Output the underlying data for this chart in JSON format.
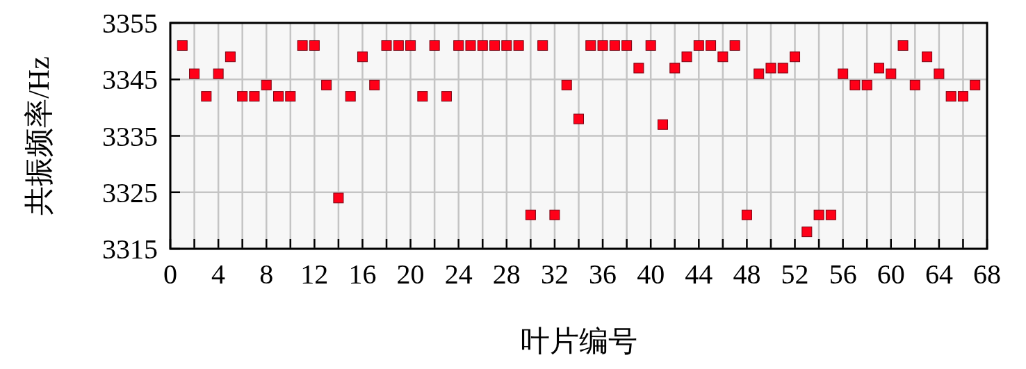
{
  "chart_data": {
    "type": "scatter",
    "xlabel": "叶片编号",
    "ylabel": "共振频率/Hz",
    "x": [
      1,
      2,
      3,
      4,
      5,
      6,
      7,
      8,
      9,
      10,
      11,
      12,
      13,
      14,
      15,
      16,
      17,
      18,
      19,
      20,
      21,
      22,
      23,
      24,
      25,
      26,
      27,
      28,
      29,
      30,
      31,
      32,
      33,
      34,
      35,
      36,
      37,
      38,
      39,
      40,
      41,
      42,
      43,
      44,
      45,
      46,
      47,
      48,
      49,
      50,
      51,
      52,
      53,
      54,
      55,
      56,
      57,
      58,
      59,
      60,
      61,
      62,
      63,
      64,
      65,
      66,
      67
    ],
    "series": [
      {
        "color": "#ff0018",
        "values": [
          3351,
          3346,
          3342,
          3346,
          3349,
          3342,
          3342,
          3344,
          3342,
          3342,
          3351,
          3351,
          3344,
          3324,
          3342,
          3349,
          3344,
          3351,
          3351,
          3351,
          3342,
          3351,
          3342,
          3351,
          3351,
          3351,
          3351,
          3351,
          3351,
          3321,
          3351,
          3321,
          3344,
          3338,
          3351,
          3351,
          3351,
          3351,
          3347,
          3351,
          3337,
          3347,
          3349,
          3351,
          3351,
          3349,
          3351,
          3321,
          3346,
          3347,
          3347,
          3349,
          3318,
          3321,
          3321,
          3346,
          3344,
          3344,
          3347,
          3346,
          3351,
          3344,
          3349,
          3346,
          3342,
          3342,
          3344
        ]
      }
    ],
    "xlim": [
      0,
      68
    ],
    "xticks": [
      0,
      {
        "value": 2,
        "label": null
      },
      4,
      {
        "value": 6,
        "label": null
      },
      8,
      {
        "value": 10,
        "label": null
      },
      12,
      {
        "value": 14,
        "label": null
      },
      16,
      {
        "value": 18,
        "label": null
      },
      20,
      {
        "value": 22,
        "label": null
      },
      24,
      {
        "value": 26,
        "label": null
      },
      28,
      {
        "value": 30,
        "label": null
      },
      32,
      {
        "value": 34,
        "label": null
      },
      36,
      {
        "value": 38,
        "label": null
      },
      40,
      {
        "value": 42,
        "label": null
      },
      44,
      {
        "value": 46,
        "label": null
      },
      48,
      {
        "value": 50,
        "label": null
      },
      52,
      {
        "value": 54,
        "label": null
      },
      56,
      {
        "value": 58,
        "label": null
      },
      60,
      {
        "value": 62,
        "label": null
      },
      64,
      {
        "value": 66,
        "label": null
      },
      68
    ],
    "ylim": [
      3315,
      3355
    ],
    "yticks": [
      3315,
      3325,
      3335,
      3345,
      3355
    ],
    "grid": true,
    "marker": "square"
  }
}
